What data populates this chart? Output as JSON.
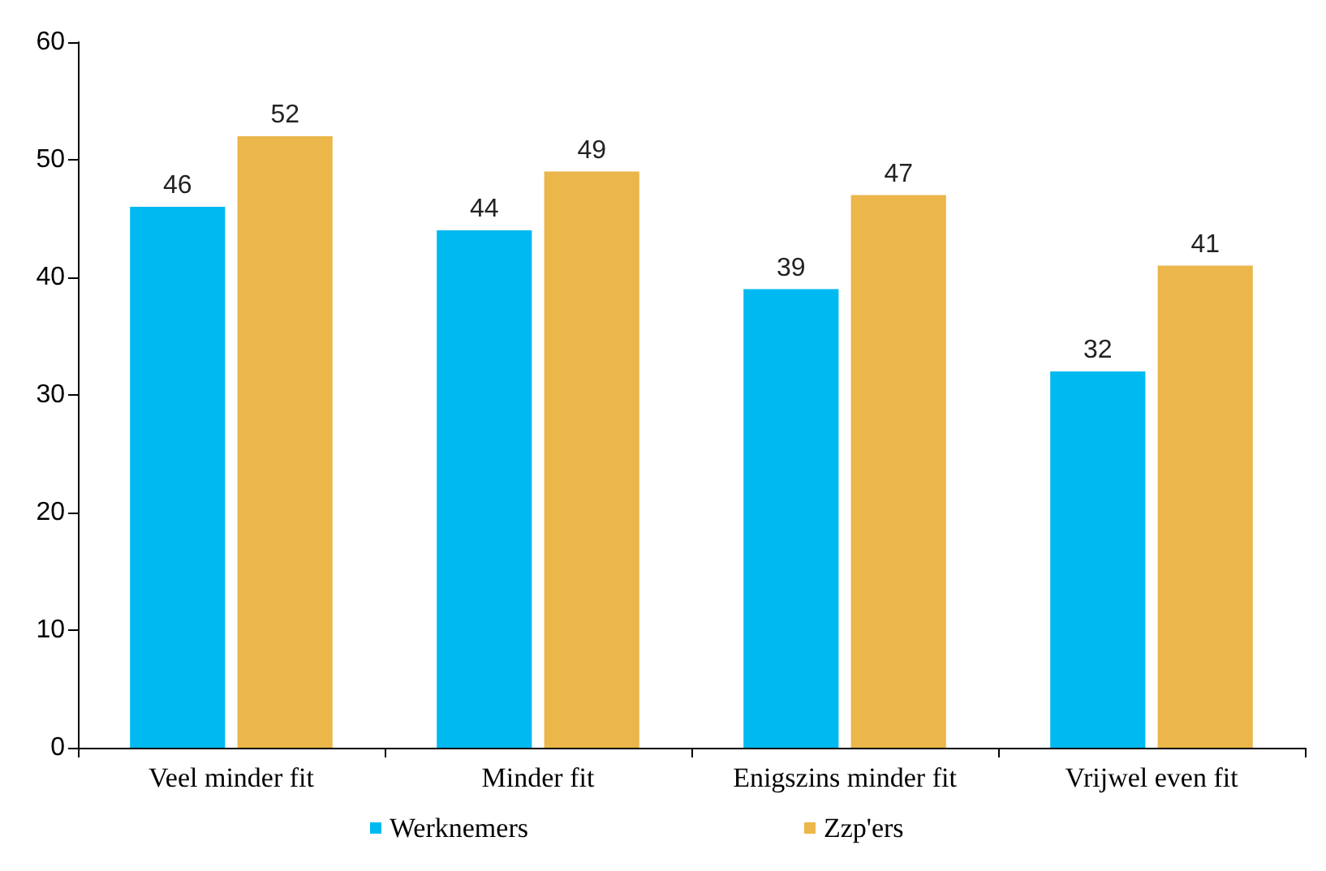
{
  "chart_data": {
    "type": "bar",
    "categories": [
      "Veel minder fit",
      "Minder fit",
      "Enigszins minder fit",
      "Vrijwel even fit"
    ],
    "series": [
      {
        "name": "Werknemers",
        "color": "#00b9f1",
        "values": [
          46,
          44,
          39,
          32
        ]
      },
      {
        "name": "Zzp'ers",
        "color": "#ebb64a",
        "values": [
          52,
          49,
          47,
          41
        ]
      }
    ],
    "ylim": [
      0,
      60
    ],
    "yticks": [
      0,
      10,
      20,
      30,
      40,
      50,
      60
    ],
    "grid": false,
    "legend": "bottom",
    "data_labels": true
  }
}
